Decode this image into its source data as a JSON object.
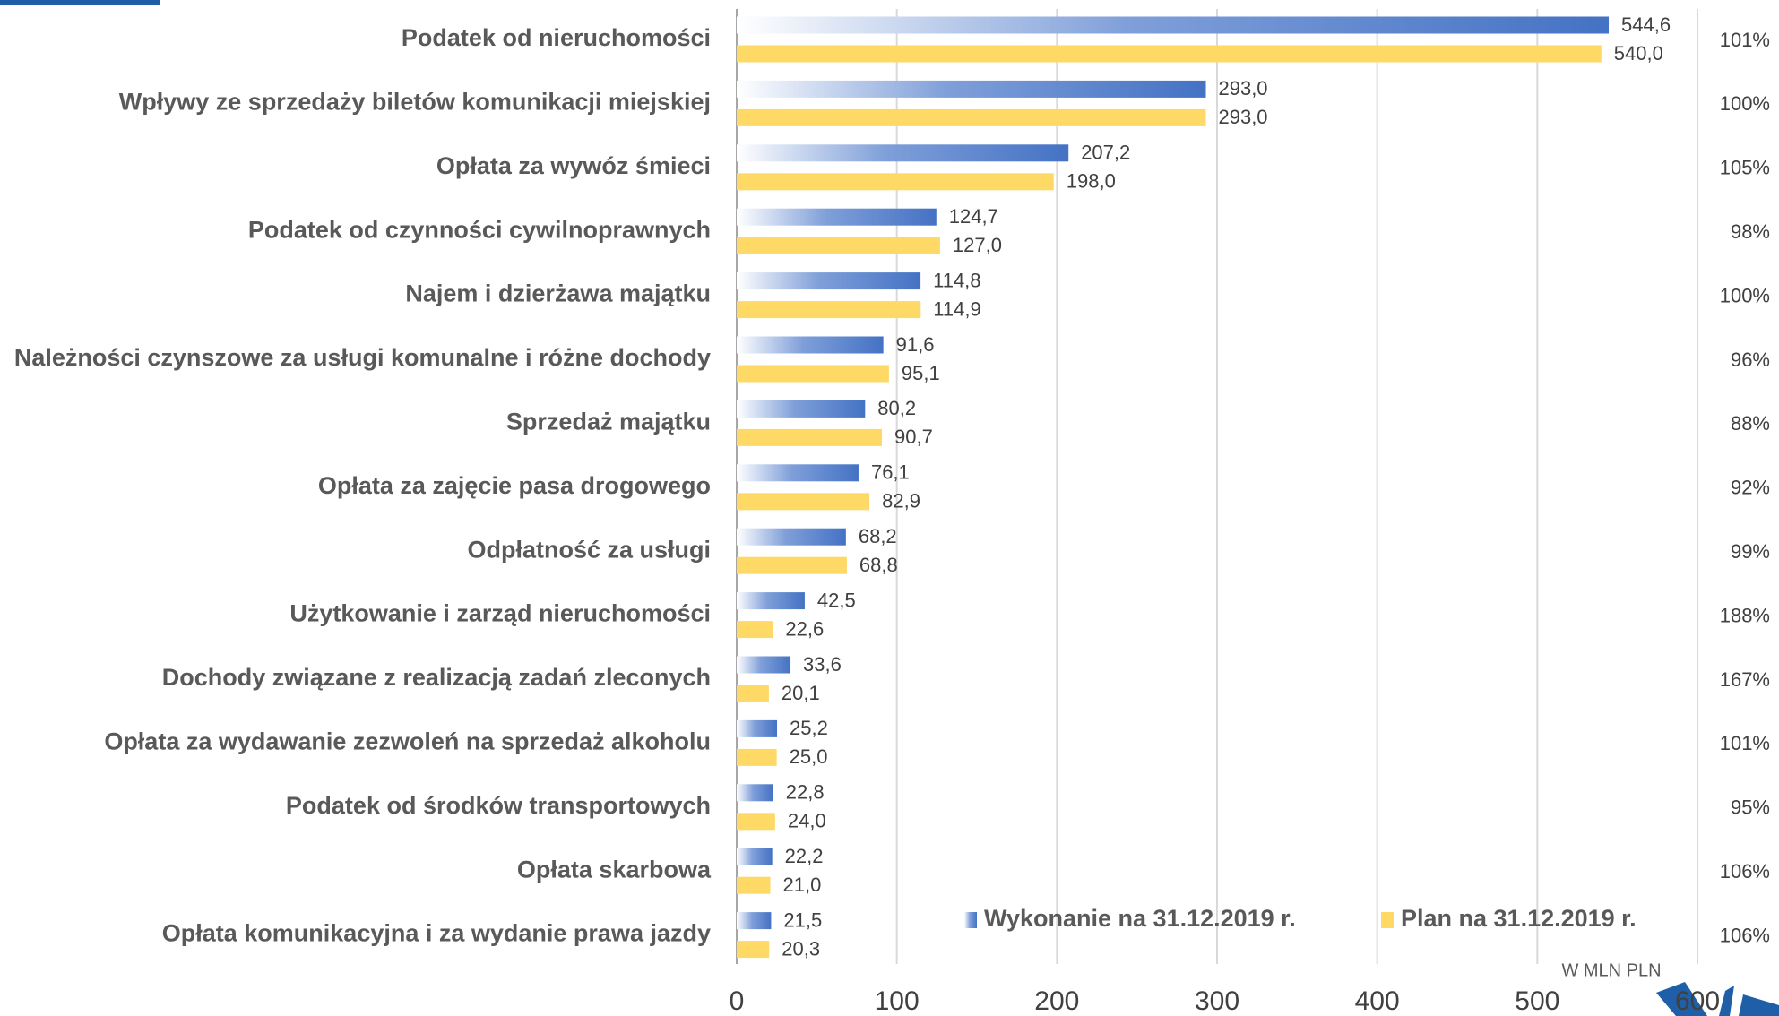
{
  "chart_data": {
    "type": "bar",
    "orientation": "horizontal",
    "categories": [
      "Podatek od nieruchomości",
      "Wpływy ze sprzedaży biletów komunikacji miejskiej",
      "Opłata za wywóz śmieci",
      "Podatek od czynności cywilnoprawnych",
      "Najem i dzierżawa majątku",
      "Należności czynszowe za usługi komunalne i różne dochody",
      "Sprzedaż majątku",
      "Opłata za zajęcie pasa drogowego",
      "Odpłatność za usługi",
      "Użytkowanie i zarząd nieruchomości",
      "Dochody związane z realizacją zadań zleconych",
      "Opłata za wydawanie zezwoleń na sprzedaż alkoholu",
      "Podatek od środków transportowych",
      "Opłata skarbowa",
      "Opłata komunikacyjna i za wydanie prawa jazdy"
    ],
    "series": [
      {
        "name": "Wykonanie na 31.12.2019 r.",
        "color": "#4472c4",
        "values": [
          544.6,
          293.0,
          207.2,
          124.7,
          114.8,
          91.6,
          80.2,
          76.1,
          68.2,
          42.5,
          33.6,
          25.2,
          22.8,
          22.2,
          21.5
        ],
        "value_labels": [
          "544,6",
          "293,0",
          "207,2",
          "124,7",
          "114,8",
          "91,6",
          "80,2",
          "76,1",
          "68,2",
          "42,5",
          "33,6",
          "25,2",
          "22,8",
          "22,2",
          "21,5"
        ]
      },
      {
        "name": "Plan na 31.12.2019 r.",
        "color": "#ffd966",
        "values": [
          540.0,
          293.0,
          198.0,
          127.0,
          114.9,
          95.1,
          90.7,
          82.9,
          68.8,
          22.6,
          20.1,
          25.0,
          24.0,
          21.0,
          20.3
        ],
        "value_labels": [
          "540,0",
          "293,0",
          "198,0",
          "127,0",
          "114,9",
          "95,1",
          "90,7",
          "82,9",
          "68,8",
          "22,6",
          "20,1",
          "25,0",
          "24,0",
          "21,0",
          "20,3"
        ]
      }
    ],
    "rate_labels": [
      "101%",
      "100%",
      "105%",
      "98%",
      "100%",
      "96%",
      "88%",
      "92%",
      "99%",
      "188%",
      "167%",
      "101%",
      "95%",
      "106%",
      "106%"
    ],
    "x_label": "W MLN PLN",
    "xlim": [
      0,
      600
    ],
    "xticks": [
      0,
      100,
      200,
      300,
      400,
      500,
      600
    ],
    "grid": true
  }
}
